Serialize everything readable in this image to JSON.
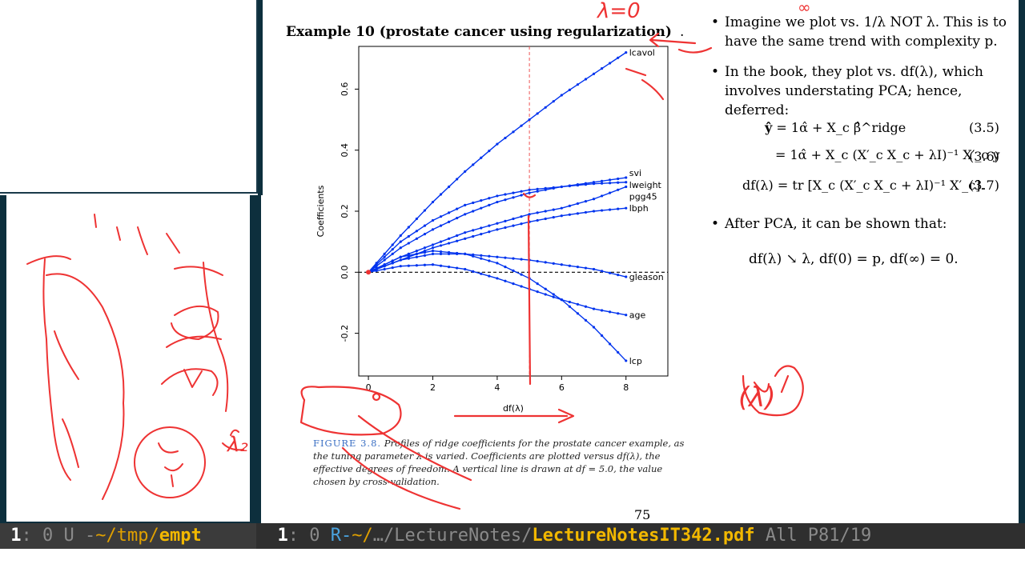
{
  "pdf": {
    "title": "Example 10 (prostate cancer using regularization)",
    "title_suffix": ".",
    "bullets": [
      "Imagine we plot vs. 1/λ NOT λ. This is to have the same trend with complexity p.",
      "In the book, they plot vs. df(λ), which involves understating PCA; hence, deferred:",
      "After PCA, it can be shown that:"
    ],
    "equations": [
      {
        "lhs": "ŷ",
        "rhs": "= 1α̂ + X_c β̂^ridge",
        "number": "(3.5)"
      },
      {
        "lhs": "",
        "rhs": "= 1α̂ + X_c (X′_c X_c + λI)⁻¹ X′_c y",
        "number": "(3.6)"
      },
      {
        "lhs": "df(λ)",
        "rhs": "= tr [X_c (X′_c X_c + λI)⁻¹ X′_c].",
        "number": "(3.7)"
      }
    ],
    "df_statement": "df(λ) ↘ λ,    df(0) = p,    df(∞) = 0.",
    "caption_lead": "FIGURE 3.8.",
    "caption_body": "Profiles of ridge coefficients for the prostate cancer example, as the tuning parameter λ is varied. Coefficients are plotted versus df(λ), the effective degrees of freedom. A vertical line is drawn at df = 5.0, the value chosen by cross-validation.",
    "page_number": "75"
  },
  "chart_data": {
    "type": "line",
    "xlabel": "df(λ)",
    "ylabel": "Coefficients",
    "xlim": [
      -0.3,
      9.3
    ],
    "ylim": [
      -0.34,
      0.74
    ],
    "xticks": [
      "0",
      "2",
      "4",
      "6",
      "8"
    ],
    "yticks": [
      "-0.2",
      "0.0",
      "0.2",
      "0.4",
      "0.6"
    ],
    "vline": 5.0,
    "hline": 0.0,
    "x": [
      0,
      1,
      2,
      3,
      4,
      5,
      6,
      7,
      8
    ],
    "series": [
      {
        "name": "lcavol",
        "values": [
          0,
          0.12,
          0.23,
          0.33,
          0.42,
          0.5,
          0.58,
          0.65,
          0.72
        ]
      },
      {
        "name": "svi",
        "values": [
          0,
          0.1,
          0.17,
          0.22,
          0.25,
          0.27,
          0.28,
          0.295,
          0.31
        ]
      },
      {
        "name": "lweight",
        "values": [
          0,
          0.08,
          0.14,
          0.19,
          0.23,
          0.26,
          0.28,
          0.29,
          0.295
        ]
      },
      {
        "name": "pgg45",
        "values": [
          0,
          0.05,
          0.09,
          0.13,
          0.16,
          0.19,
          0.21,
          0.24,
          0.28
        ]
      },
      {
        "name": "lbph",
        "values": [
          0,
          0.04,
          0.08,
          0.11,
          0.14,
          0.165,
          0.185,
          0.2,
          0.21
        ]
      },
      {
        "name": "gleason",
        "values": [
          0,
          0.04,
          0.06,
          0.06,
          0.05,
          0.04,
          0.025,
          0.01,
          -0.015
        ]
      },
      {
        "name": "age",
        "values": [
          0,
          0.02,
          0.025,
          0.01,
          -0.02,
          -0.055,
          -0.09,
          -0.12,
          -0.14
        ]
      },
      {
        "name": "lcp",
        "values": [
          0,
          0.05,
          0.07,
          0.06,
          0.03,
          -0.02,
          -0.09,
          -0.18,
          -0.29
        ]
      }
    ]
  },
  "modeline_left": {
    "window_num": "1",
    "sep": ": 0 U -",
    "path": "~/tmp/",
    "file": "empt"
  },
  "modeline_right": {
    "window_num": "1",
    "sep": ": 0  ",
    "state": "R-",
    "path_prefix": "~/",
    "path": "…/LectureNotes/",
    "file": "LectureNotesIT342.pdf",
    "position": "  All P81/19"
  },
  "annotations": {
    "top_note": "λ=0",
    "top_right_note": "∞",
    "side_note": "λ₂",
    "circle_note": "(λ)"
  },
  "colors": {
    "accent": "#0033ee",
    "ink": "#ee3333",
    "frame": "#0d2f3d",
    "modeline": "#3b3b3b"
  }
}
